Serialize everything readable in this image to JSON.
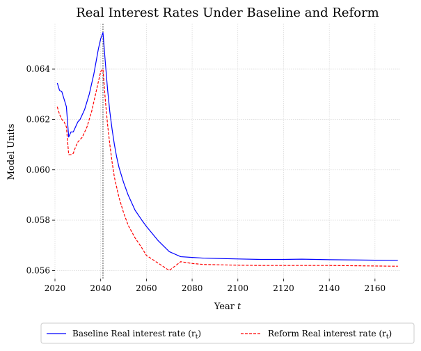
{
  "chart_data": {
    "type": "line",
    "title": "Real Interest Rates Under Baseline and Reform",
    "xlabel": "Year",
    "xlabel_var": "t",
    "ylabel": "Model Units",
    "xlim": [
      2020,
      2171
    ],
    "ylim": [
      0.05568,
      0.0658
    ],
    "xticks": [
      2020,
      2040,
      2060,
      2080,
      2100,
      2120,
      2140,
      2160
    ],
    "xtick_labels": [
      "2020",
      "2040",
      "2060",
      "2080",
      "2100",
      "2120",
      "2140",
      "2160"
    ],
    "yticks": [
      0.056,
      0.058,
      0.06,
      0.062,
      0.064
    ],
    "ytick_labels": [
      "0.056",
      "0.058",
      "0.060",
      "0.062",
      "0.064"
    ],
    "grid": true,
    "vline_x": 2041,
    "legend_placement": "bottom-center",
    "series": [
      {
        "name": "Baseline Real interest rate",
        "name_math": "(r",
        "name_sub": "t",
        "name_close": ")",
        "color": "#0000ff",
        "style": "solid",
        "x": [
          2021,
          2022,
          2023,
          2024,
          2025,
          2026,
          2027,
          2028,
          2029,
          2030,
          2031,
          2032,
          2033,
          2034,
          2035,
          2036,
          2037,
          2038,
          2039,
          2040,
          2041,
          2042,
          2043,
          2044,
          2045,
          2046,
          2047,
          2048,
          2050,
          2052,
          2055,
          2058,
          2060,
          2065,
          2070,
          2075,
          2080,
          2085,
          2090,
          2100,
          2110,
          2120,
          2128,
          2140,
          2150,
          2160,
          2170
        ],
        "y": [
          0.06345,
          0.06315,
          0.0631,
          0.0628,
          0.0625,
          0.0613,
          0.0615,
          0.0615,
          0.0617,
          0.0619,
          0.062,
          0.0622,
          0.0624,
          0.0627,
          0.063,
          0.0634,
          0.0638,
          0.0643,
          0.0648,
          0.0652,
          0.06545,
          0.0643,
          0.0632,
          0.0623,
          0.0616,
          0.061,
          0.0605,
          0.0601,
          0.0595,
          0.059,
          0.0584,
          0.058,
          0.05775,
          0.0572,
          0.05675,
          0.05655,
          0.05652,
          0.05649,
          0.05648,
          0.05646,
          0.05644,
          0.05644,
          0.05645,
          0.05643,
          0.05642,
          0.05641,
          0.0564
        ]
      },
      {
        "name": "Reform Real interest rate",
        "name_math": "(r",
        "name_sub": "t",
        "name_close": ")",
        "color": "#ff0000",
        "style": "dashed",
        "x": [
          2021,
          2022,
          2023,
          2024,
          2025,
          2026,
          2027,
          2028,
          2029,
          2030,
          2031,
          2032,
          2033,
          2034,
          2035,
          2036,
          2037,
          2038,
          2039,
          2040,
          2041,
          2042,
          2043,
          2044,
          2045,
          2046,
          2047,
          2048,
          2050,
          2052,
          2055,
          2058,
          2060,
          2065,
          2070,
          2075,
          2080,
          2085,
          2090,
          2100,
          2110,
          2120,
          2128,
          2140,
          2150,
          2160,
          2170
        ],
        "y": [
          0.0625,
          0.0622,
          0.062,
          0.0619,
          0.0617,
          0.0606,
          0.0606,
          0.06065,
          0.0609,
          0.0611,
          0.0612,
          0.0613,
          0.0615,
          0.0617,
          0.062,
          0.0623,
          0.0627,
          0.0631,
          0.0635,
          0.0639,
          0.064,
          0.0628,
          0.0618,
          0.061,
          0.0603,
          0.0597,
          0.0593,
          0.0589,
          0.0583,
          0.0578,
          0.0573,
          0.0569,
          0.0566,
          0.0563,
          0.056,
          0.05635,
          0.05628,
          0.05624,
          0.05623,
          0.05621,
          0.0562,
          0.0562,
          0.0562,
          0.0562,
          0.05619,
          0.05618,
          0.05617
        ]
      }
    ]
  }
}
